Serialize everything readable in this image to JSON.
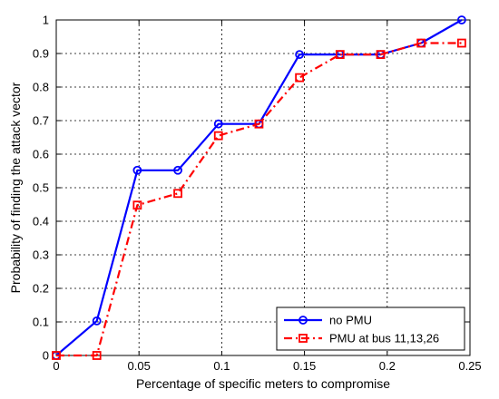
{
  "chart_data": {
    "type": "line",
    "title": "",
    "xlabel": "Percentage of specific meters to compromise",
    "ylabel": "Probability of finding the attack vector",
    "xlim": [
      0,
      0.25
    ],
    "ylim": [
      0,
      1
    ],
    "xticks": [
      0,
      0.05,
      0.1,
      0.15,
      0.2,
      0.25
    ],
    "xtick_labels": [
      "0",
      "0.05",
      "0.1",
      "0.15",
      "0.2",
      "0.25"
    ],
    "yticks": [
      0,
      0.1,
      0.2,
      0.3,
      0.4,
      0.5,
      0.6,
      0.7,
      0.8,
      0.9,
      1
    ],
    "ytick_labels": [
      "0",
      "0.1",
      "0.2",
      "0.3",
      "0.4",
      "0.5",
      "0.6",
      "0.7",
      "0.8",
      "0.9",
      "1"
    ],
    "grid": true,
    "legend_position": "bottom-right",
    "series": [
      {
        "name": "no PMU",
        "color": "#0000ff",
        "line_style": "solid",
        "marker": "circle",
        "x": [
          0,
          0.0245,
          0.049,
          0.0735,
          0.098,
          0.1225,
          0.147,
          0.1715,
          0.196,
          0.2205,
          0.245
        ],
        "y": [
          0,
          0.103,
          0.552,
          0.552,
          0.69,
          0.69,
          0.897,
          0.897,
          0.897,
          0.931,
          1.0
        ]
      },
      {
        "name": "PMU at bus 11,13,26",
        "color": "#ff0000",
        "line_style": "dash-dot",
        "marker": "square",
        "x": [
          0,
          0.0245,
          0.049,
          0.0735,
          0.098,
          0.1225,
          0.147,
          0.1715,
          0.196,
          0.2205,
          0.245
        ],
        "y": [
          0,
          0,
          0.448,
          0.483,
          0.655,
          0.69,
          0.828,
          0.897,
          0.897,
          0.931,
          0.931
        ]
      }
    ]
  }
}
